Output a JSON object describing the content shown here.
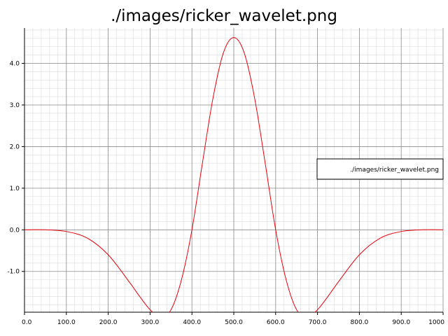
{
  "chart_data": {
    "type": "line",
    "title": "./images/ricker_wavelet.png",
    "xlabel": "",
    "ylabel": "",
    "xlim": [
      0,
      1000
    ],
    "ylim": [
      -1.98,
      4.85
    ],
    "xticks": [
      0,
      100,
      200,
      300,
      400,
      500,
      600,
      700,
      800,
      900,
      1000
    ],
    "xtick_labels": [
      "0.0",
      "100.0",
      "200.0",
      "300.0",
      "400.0",
      "500.0",
      "600.0",
      "700.0",
      "800.0",
      "900.0",
      "1000"
    ],
    "yticks": [
      -1,
      0,
      1,
      2,
      3,
      4
    ],
    "ytick_labels": [
      "-1.0",
      "0.0",
      "1.0",
      "2.0",
      "3.0",
      "4.0"
    ],
    "grid": true,
    "minor_grid": true,
    "legend_position": "right",
    "colors": {
      "series": "#e8000b",
      "major_grid": "#8c8c8c",
      "minor_grid": "#dcdcdc"
    },
    "series": [
      {
        "name": "./images/ricker_wavelet.png",
        "x": [
          0,
          50,
          100,
          150,
          200,
          250,
          275,
          300,
          325,
          350,
          375,
          400,
          425,
          450,
          475,
          500,
          525,
          550,
          575,
          600,
          625,
          650,
          675,
          700,
          725,
          750,
          800,
          850,
          900,
          950,
          1000
        ],
        "y": [
          0.0,
          -0.0,
          -0.04,
          -0.2,
          -0.6,
          -1.25,
          -1.6,
          -1.92,
          -2.1,
          -1.92,
          -1.2,
          0.0,
          1.6,
          3.15,
          4.25,
          4.62,
          4.25,
          3.15,
          1.6,
          0.0,
          -1.2,
          -1.92,
          -2.1,
          -1.92,
          -1.6,
          -1.25,
          -0.6,
          -0.2,
          -0.04,
          -0.0,
          0.0
        ]
      }
    ]
  }
}
